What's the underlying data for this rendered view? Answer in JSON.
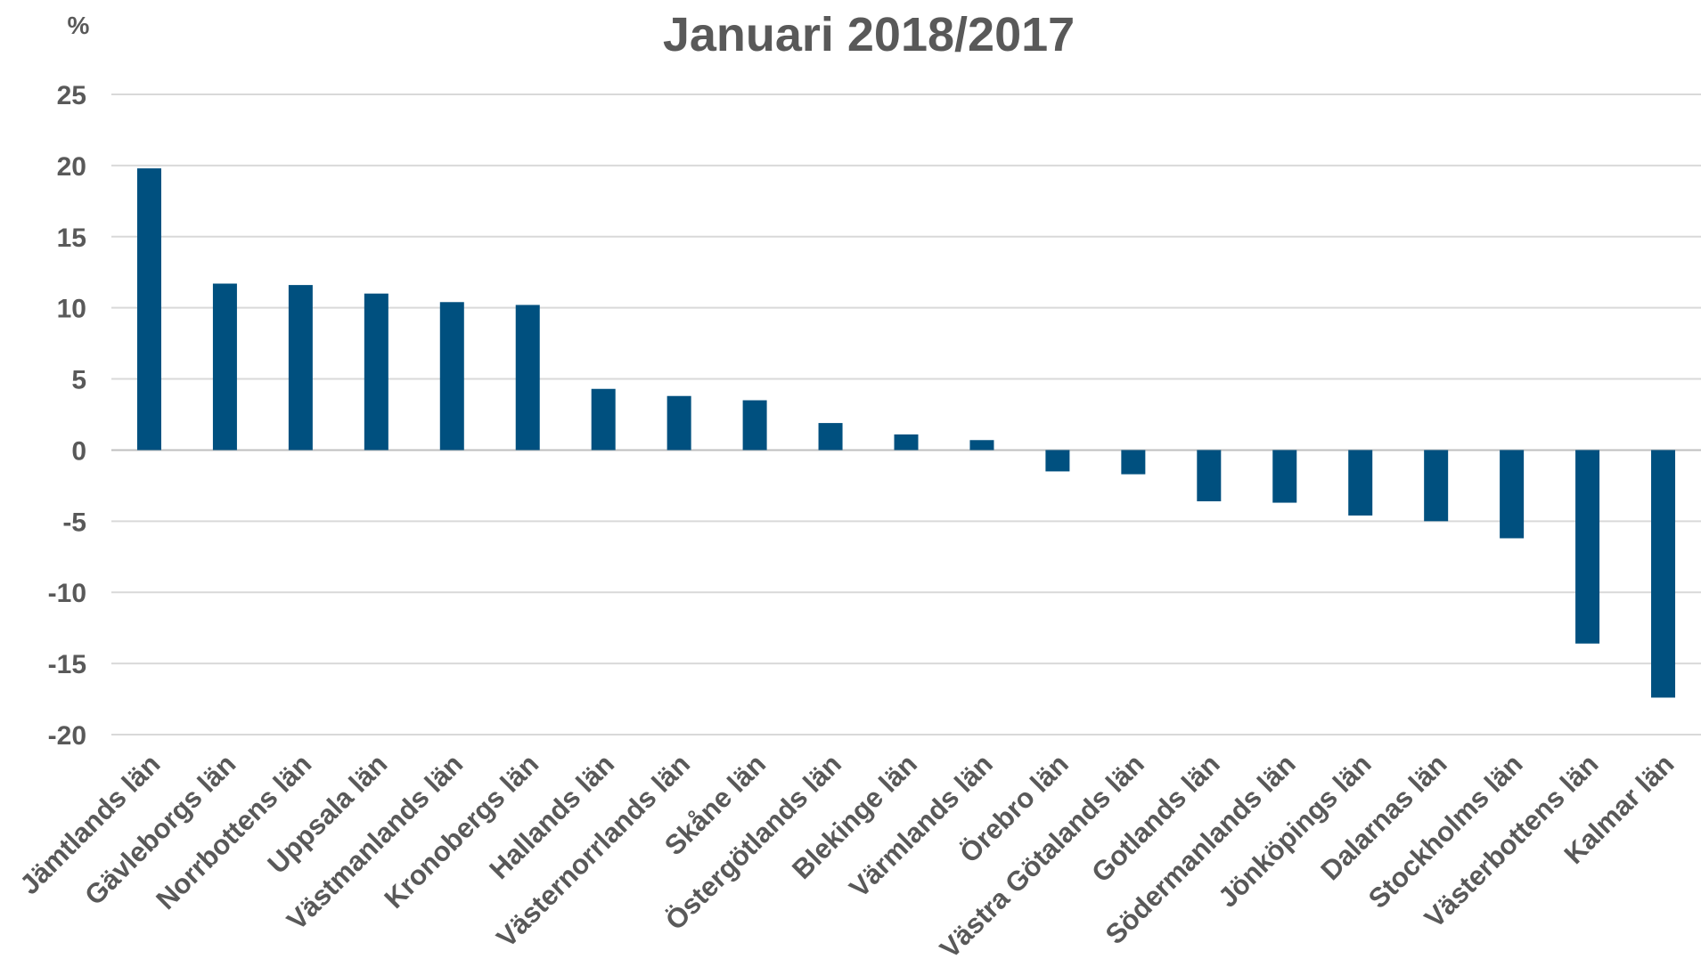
{
  "chart_data": {
    "type": "bar",
    "title": "Januari 2018/2017",
    "unit_label": "%",
    "xlabel": "",
    "ylabel": "",
    "ylim": [
      -20,
      25
    ],
    "yticks": [
      "25",
      "20",
      "15",
      "10",
      "5",
      "0",
      "-5",
      "-10",
      "-15",
      "-20"
    ],
    "grid": true,
    "legend": "none",
    "bar_color": "#00507f",
    "categories": [
      "Jämtlands län",
      "Gävleborgs län",
      "Norrbottens län",
      "Uppsala län",
      "Västmanlands län",
      "Kronobergs län",
      "Hallands län",
      "Västernorrlands län",
      "Skåne län",
      "Östergötlands län",
      "Blekinge län",
      "Värmlands län",
      "Örebro län",
      "Västra Götalands län",
      "Gotlands län",
      "Södermanlands län",
      "Jönköpings län",
      "Dalarnas län",
      "Stockholms län",
      "Västerbottens län",
      "Kalmar län"
    ],
    "values": [
      19.8,
      11.7,
      11.6,
      11.0,
      10.4,
      10.2,
      4.3,
      3.8,
      3.5,
      1.9,
      1.1,
      0.7,
      -1.5,
      -1.7,
      -3.6,
      -3.7,
      -4.6,
      -5.0,
      -6.2,
      -13.6,
      -17.4
    ]
  }
}
